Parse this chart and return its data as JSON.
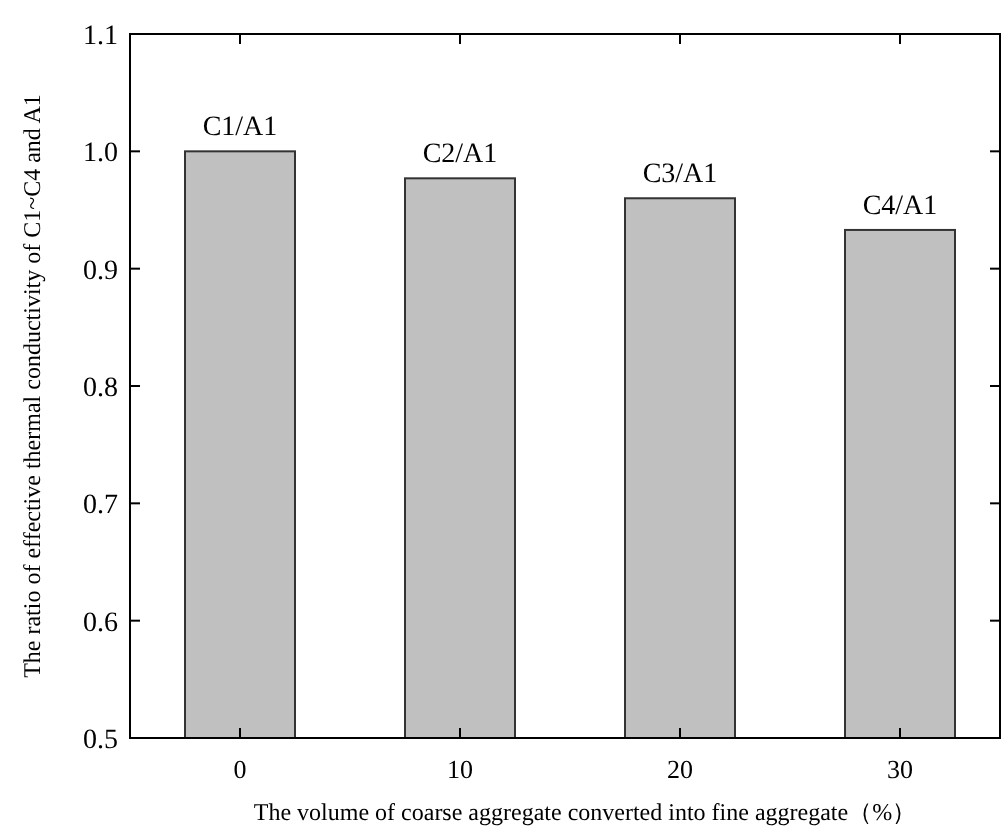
{
  "chart_data": {
    "type": "bar",
    "xlabel": "The volume of coarse aggregate converted into fine aggregate（%）",
    "ylabel": "The ratio of effective thermal conductivity of C1~C4 and A1",
    "categories": [
      "0",
      "10",
      "20",
      "30"
    ],
    "values": [
      1.0,
      0.977,
      0.96,
      0.933
    ],
    "color": "#c0c0c0",
    "ylim": [
      0.5,
      1.1
    ],
    "yticks": [
      0.5,
      0.6,
      0.7,
      0.8,
      0.9,
      {
        "value": 1.0,
        "label": "1.0"
      },
      1.1
    ],
    "annotations": [
      {
        "text": "C1/A1",
        "x": "0",
        "y": 1.0
      },
      {
        "text": "C2/A1",
        "x": "10",
        "y": 0.977
      },
      {
        "text": "C3/A1",
        "x": "20",
        "y": 0.96
      },
      {
        "text": "C4/A1",
        "x": "30",
        "y": 0.933
      }
    ],
    "grid": false
  }
}
